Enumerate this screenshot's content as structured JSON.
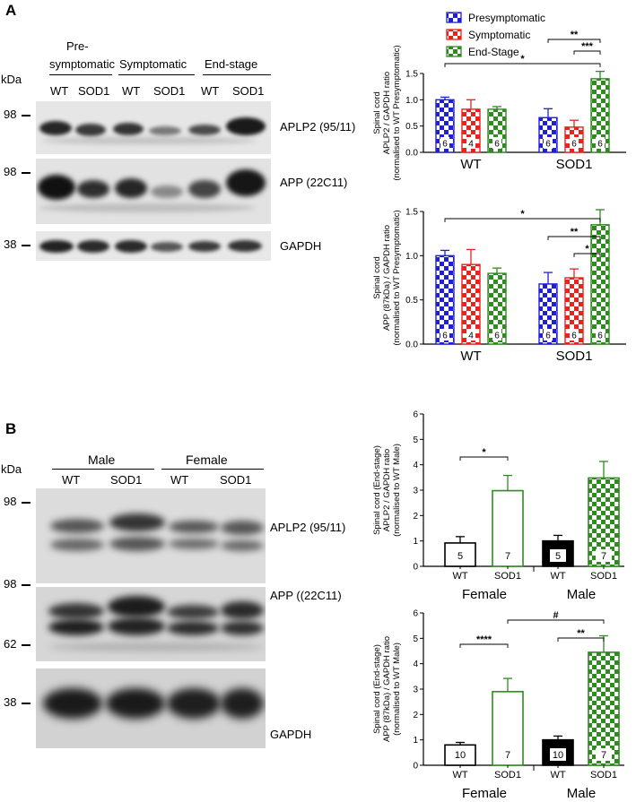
{
  "panelA": {
    "letter": "A",
    "kda": "kDa",
    "groups": [
      "Pre-\nsymptomatic",
      "Symptomatic",
      "End-stage"
    ],
    "group_line1": "Pre-",
    "group_line2": "symptomatic",
    "group_symptomatic": "Symptomatic",
    "group_endstage": "End-stage",
    "lanes": [
      "WT",
      "SOD1",
      "WT",
      "SOD1",
      "WT",
      "SOD1"
    ],
    "markers": [
      "98",
      "98",
      "38"
    ],
    "blots": [
      "APLP2 (95/11)",
      "APP (22C11)",
      "GAPDH"
    ]
  },
  "panelB": {
    "letter": "B",
    "kda": "kDa",
    "group_male": "Male",
    "group_female": "Female",
    "lanes": [
      "WT",
      "SOD1",
      "WT",
      "SOD1"
    ],
    "markers": [
      "98",
      "98",
      "62",
      "38"
    ],
    "blots": [
      "APLP2 (95/11)",
      "APP ((22C11)",
      "GAPDH"
    ]
  },
  "colors": {
    "blue": "#1f1fd6",
    "red": "#e8231c",
    "green": "#2e8b1e",
    "black": "#000000"
  },
  "chart_data": [
    {
      "type": "bar",
      "ylabel_lines": [
        "Spinal cord",
        "APLP2 / GAPDH ratio",
        "(normalised to WT Presymptomatic)"
      ],
      "categories": [
        "WT",
        "SOD1"
      ],
      "legend": [
        "Presymptomatic",
        "Symptomatic",
        "End-Stage"
      ],
      "legend_position": "top-left",
      "ylim": [
        0,
        1.5
      ],
      "yticks": [
        "0.0",
        "0.5",
        "1.0",
        "1.5"
      ],
      "series": [
        {
          "name": "Presymptomatic",
          "values": [
            1.0,
            0.66
          ],
          "errors": [
            0.05,
            0.17
          ],
          "n": [
            "6",
            "6"
          ]
        },
        {
          "name": "Symptomatic",
          "values": [
            0.82,
            0.48
          ],
          "errors": [
            0.18,
            0.13
          ],
          "n": [
            "4",
            "6"
          ]
        },
        {
          "name": "End-Stage",
          "values": [
            0.82,
            1.4
          ],
          "errors": [
            0.05,
            0.14
          ],
          "n": [
            "6",
            "6"
          ]
        }
      ],
      "significance": [
        "**",
        "***",
        "*"
      ]
    },
    {
      "type": "bar",
      "ylabel_lines": [
        "Spinal cord",
        "APP (87kDa) / GAPDH ratio",
        "(normalised to WT Presymptomatic)"
      ],
      "categories": [
        "WT",
        "SOD1"
      ],
      "ylim": [
        0,
        1.5
      ],
      "yticks": [
        "0.0",
        "0.5",
        "1.0",
        "1.5"
      ],
      "series": [
        {
          "name": "Presymptomatic",
          "values": [
            1.0,
            0.68
          ],
          "errors": [
            0.06,
            0.13
          ],
          "n": [
            "6",
            "6"
          ]
        },
        {
          "name": "Symptomatic",
          "values": [
            0.9,
            0.75
          ],
          "errors": [
            0.17,
            0.1
          ],
          "n": [
            "4",
            "6"
          ]
        },
        {
          "name": "End-Stage",
          "values": [
            0.8,
            1.35
          ],
          "errors": [
            0.06,
            0.17
          ],
          "n": [
            "6",
            "6"
          ]
        }
      ],
      "significance": [
        "*",
        "**",
        "*"
      ]
    },
    {
      "type": "bar",
      "ylabel_lines": [
        "Spinal cord (End-stage)",
        "APLP2 / GAPDH ratio",
        "(normalised to WT Male)"
      ],
      "categories": [
        "WT",
        "SOD1",
        "WT",
        "SOD1"
      ],
      "groups": [
        "Female",
        "Male"
      ],
      "ylim": [
        0,
        6
      ],
      "yticks": [
        "0",
        "1",
        "2",
        "3",
        "4",
        "5",
        "6"
      ],
      "values": [
        0.92,
        2.98,
        1.0,
        3.48
      ],
      "errors": [
        0.25,
        0.6,
        0.22,
        0.65
      ],
      "n": [
        "5",
        "7",
        "5",
        "7"
      ],
      "styles": [
        "open-black",
        "open-green",
        "solid-black",
        "checker-green"
      ],
      "significance": [
        "*"
      ]
    },
    {
      "type": "bar",
      "ylabel_lines": [
        "Spinal cord (End-stage)",
        "APP (87kDa) / GAPDH ratio",
        "(normalised to WT Male)"
      ],
      "categories": [
        "WT",
        "SOD1",
        "WT",
        "SOD1"
      ],
      "groups": [
        "Female",
        "Male"
      ],
      "ylim": [
        0,
        6
      ],
      "yticks": [
        "0",
        "1",
        "2",
        "3",
        "4",
        "5",
        "6"
      ],
      "values": [
        0.8,
        2.9,
        1.0,
        4.45
      ],
      "errors": [
        0.1,
        0.52,
        0.15,
        0.65
      ],
      "n": [
        "10",
        "7",
        "10",
        "7"
      ],
      "styles": [
        "open-black",
        "open-green",
        "solid-black",
        "checker-green"
      ],
      "significance": [
        "****",
        "**",
        "#"
      ]
    }
  ]
}
